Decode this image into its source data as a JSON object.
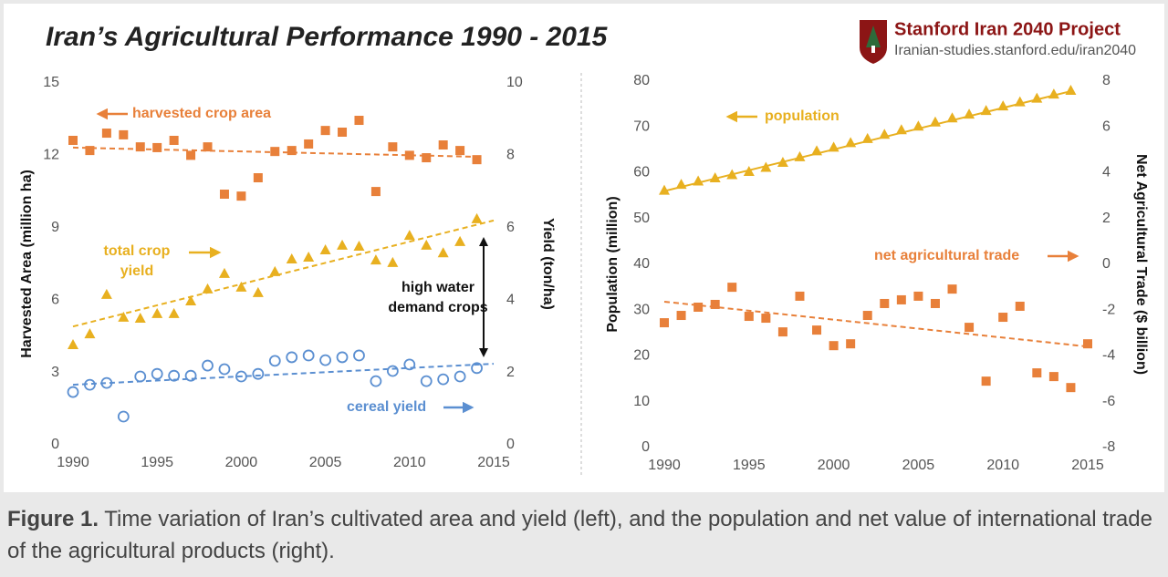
{
  "header": {
    "title": "Iran’s Agricultural Performance 1990 - 2015",
    "logo_title": "Stanford Iran 2040 Project",
    "logo_url": "Iranian-studies.stanford.edu/iran2040"
  },
  "chart_data": [
    {
      "type": "scatter",
      "x": [
        1990,
        1991,
        1992,
        1993,
        1994,
        1995,
        1996,
        1997,
        1998,
        1999,
        2000,
        2001,
        2002,
        2003,
        2004,
        2005,
        2006,
        2007,
        2008,
        2009,
        2010,
        2011,
        2012,
        2013,
        2014
      ],
      "xlim": [
        1990,
        2015
      ],
      "xticks": [
        1990,
        1995,
        2000,
        2005,
        2010,
        2015
      ],
      "ylabel": "Harvested Area (million ha)",
      "ylim": [
        0,
        15
      ],
      "yticks": [
        0,
        3,
        6,
        9,
        12,
        15
      ],
      "y2label": "Yield (ton/ha)",
      "y2lim": [
        0,
        10
      ],
      "y2ticks": [
        0,
        2,
        4,
        6,
        8,
        10
      ],
      "series": [
        {
          "name": "harvested crop area",
          "color": "#e8803a",
          "marker": "square",
          "axis": "y",
          "label_arrow": "left",
          "values": [
            12.62,
            12.2,
            12.92,
            12.85,
            12.35,
            12.32,
            12.62,
            12.0,
            12.35,
            10.39,
            10.31,
            11.07,
            12.16,
            12.2,
            12.47,
            13.03,
            12.96,
            13.45,
            10.5,
            12.35,
            12.0,
            11.9,
            12.43,
            12.2,
            11.82
          ],
          "trend": {
            "x": [
              1990,
              2014
            ],
            "values": [
              12.32,
              11.94
            ],
            "style": "dashed"
          }
        },
        {
          "name": "total crop yield",
          "color": "#e8b020",
          "marker": "triangle",
          "axis": "y2",
          "label_arrow": "right",
          "values": [
            2.77,
            3.07,
            4.16,
            3.53,
            3.5,
            3.63,
            3.63,
            3.98,
            4.31,
            4.74,
            4.36,
            4.21,
            4.79,
            5.14,
            5.19,
            5.39,
            5.52,
            5.49,
            5.11,
            5.04,
            5.79,
            5.52,
            5.31,
            5.62,
            6.25
          ],
          "trend": {
            "x": [
              1990,
              2015
            ],
            "values": [
              3.27,
              6.2
            ],
            "style": "dashed"
          }
        },
        {
          "name": "cereal yield",
          "color": "#5b8fd1",
          "marker": "circle",
          "axis": "y2",
          "label_arrow": "right",
          "values": [
            1.46,
            1.66,
            1.71,
            0.78,
            1.89,
            1.96,
            1.91,
            1.91,
            2.19,
            2.09,
            1.89,
            1.96,
            2.32,
            2.42,
            2.47,
            2.34,
            2.42,
            2.47,
            1.76,
            2.04,
            2.22,
            1.76,
            1.81,
            1.89,
            2.12
          ],
          "trend": {
            "x": [
              1990,
              2015
            ],
            "values": [
              1.66,
              2.24
            ],
            "style": "dashed"
          }
        }
      ],
      "annotations": [
        {
          "text": "high water demand crops"
        }
      ]
    },
    {
      "type": "scatter",
      "x": [
        1990,
        1991,
        1992,
        1993,
        1994,
        1995,
        1996,
        1997,
        1998,
        1999,
        2000,
        2001,
        2002,
        2003,
        2004,
        2005,
        2006,
        2007,
        2008,
        2009,
        2010,
        2011,
        2012,
        2013,
        2014,
        2015
      ],
      "xlim": [
        1990,
        2015
      ],
      "xticks": [
        1990,
        1995,
        2000,
        2005,
        2010,
        2015
      ],
      "ylabel": "Population (million)",
      "ylim": [
        0,
        80
      ],
      "yticks": [
        0,
        10,
        20,
        30,
        40,
        50,
        60,
        70,
        80
      ],
      "y2label": "Net Agricultural Trade ($ billion)",
      "y2lim": [
        -8,
        8
      ],
      "y2ticks": [
        -8,
        -6,
        -4,
        -2,
        0,
        2,
        4,
        6,
        8
      ],
      "series": [
        {
          "name": "population",
          "color": "#e8b020",
          "marker": "triangle",
          "axis": "y",
          "label_arrow": "left",
          "values": [
            56.2,
            57.5,
            58.2,
            58.9,
            59.6,
            60.3,
            61.2,
            62.3,
            63.5,
            64.8,
            65.6,
            66.6,
            67.5,
            68.4,
            69.4,
            70.2,
            71.1,
            72.0,
            72.8,
            73.6,
            74.6,
            75.5,
            76.3,
            77.2,
            78.0,
            null
          ],
          "trend": {
            "x": [
              1990,
              2014
            ],
            "values": [
              56.0,
              77.8
            ],
            "style": "solid"
          }
        },
        {
          "name": "net agricultural trade",
          "color": "#e8803a",
          "marker": "square",
          "axis": "y2",
          "label_arrow": "right",
          "values": [
            -2.55,
            -2.23,
            -1.87,
            -1.75,
            -1.0,
            -2.27,
            -2.35,
            -2.95,
            -1.39,
            -2.87,
            -3.55,
            -3.47,
            -2.23,
            -1.71,
            -1.55,
            -1.39,
            -1.71,
            -1.08,
            -2.75,
            -5.1,
            -2.31,
            -1.83,
            -4.74,
            -4.9,
            -5.38,
            -3.47
          ],
          "trend": {
            "x": [
              1990,
              2015
            ],
            "values": [
              -1.63,
              -3.59
            ],
            "style": "dashed"
          }
        }
      ],
      "annotations": []
    }
  ],
  "caption": {
    "label": "Figure 1.",
    "text": "Time variation of Iran’s cultivated area and yield (left), and the population and net value of international trade of the agricultural products (right)."
  }
}
